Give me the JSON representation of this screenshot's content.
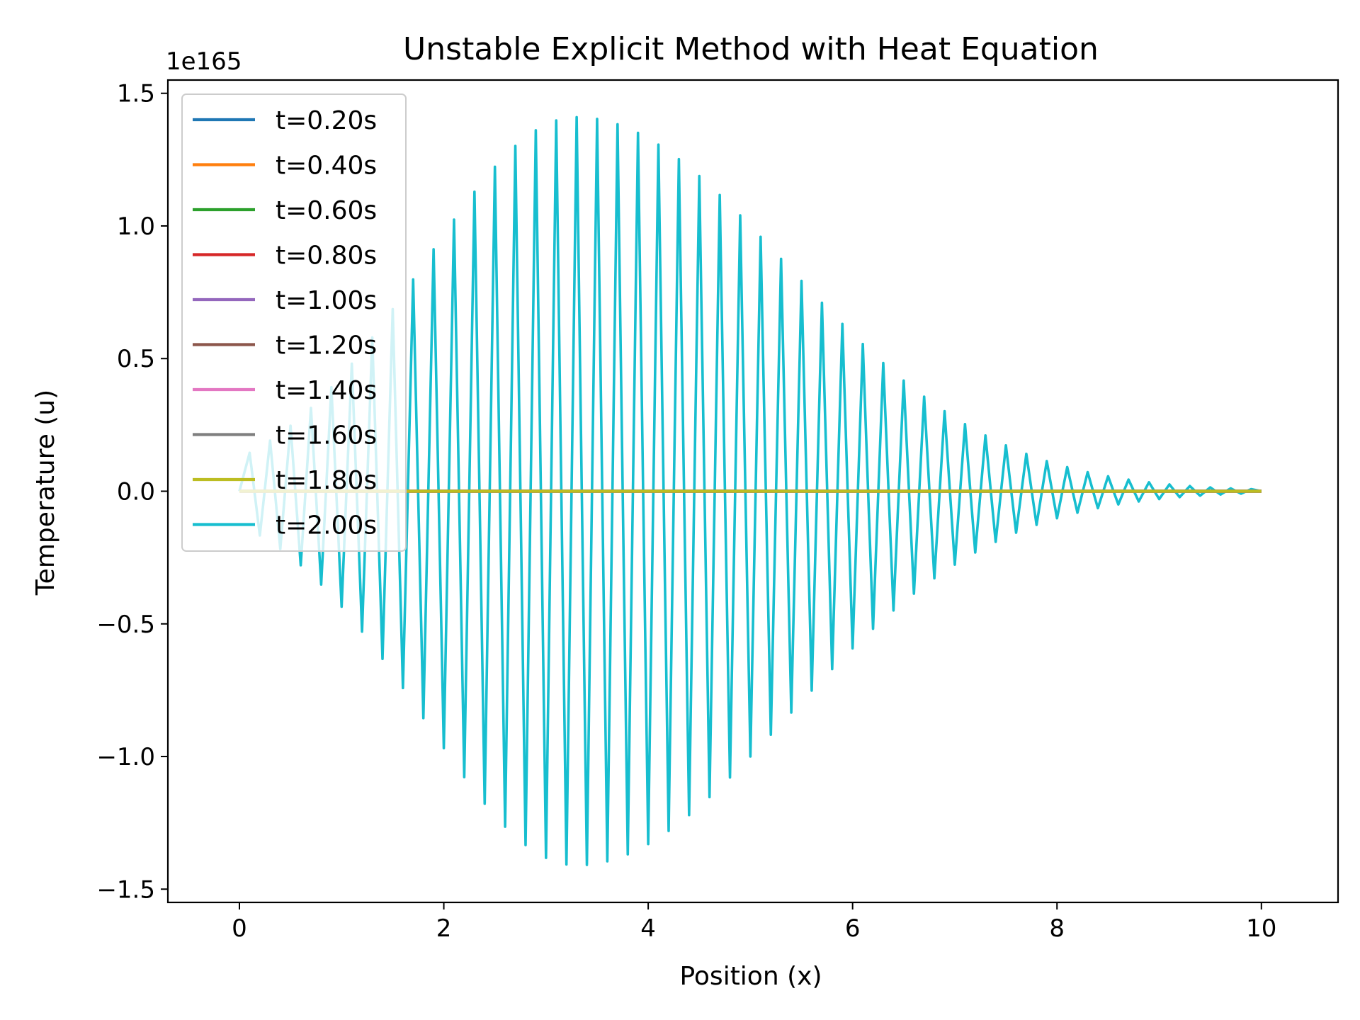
{
  "chart_data": {
    "type": "line",
    "title": "Unstable Explicit Method with Heat Equation",
    "xlabel": "Position (x)",
    "ylabel": "Temperature (u)",
    "y_offset_label": "1e165",
    "y_unit_scale": 1e+165,
    "xlim": [
      -0.7,
      10.75
    ],
    "ylim": [
      -1.55,
      1.55
    ],
    "xticks": [
      0,
      2,
      4,
      6,
      8,
      10
    ],
    "xtick_labels": [
      "0",
      "2",
      "4",
      "6",
      "8",
      "10"
    ],
    "yticks": [
      -1.5,
      -1.0,
      -0.5,
      0.0,
      0.5,
      1.0,
      1.5
    ],
    "ytick_labels": [
      "−1.5",
      "−1.0",
      "−0.5",
      "0.0",
      "0.5",
      "1.0",
      "1.5"
    ],
    "grid": false,
    "legend_position": "upper left",
    "x_range": [
      0,
      10
    ],
    "x_step": 0.1,
    "series": [
      {
        "name": "t=0.20s",
        "color": "#1f77b4",
        "values": "zero"
      },
      {
        "name": "t=0.40s",
        "color": "#ff7f0e",
        "values": "zero"
      },
      {
        "name": "t=0.60s",
        "color": "#2ca02c",
        "values": "zero"
      },
      {
        "name": "t=0.80s",
        "color": "#d62728",
        "values": "zero"
      },
      {
        "name": "t=1.00s",
        "color": "#9467bd",
        "values": "zero"
      },
      {
        "name": "t=1.20s",
        "color": "#8c564b",
        "values": "zero"
      },
      {
        "name": "t=1.40s",
        "color": "#e377c2",
        "values": "zero"
      },
      {
        "name": "t=1.60s",
        "color": "#7f7f7f",
        "values": "zero"
      },
      {
        "name": "t=1.80s",
        "color": "#bcbd22",
        "values": "zero"
      },
      {
        "name": "t=2.00s",
        "color": "#17becf",
        "envelope": {
          "peak": 1.41,
          "peak_x": 3.3,
          "sigma_left": 1.5,
          "sigma_right": 2.05
        },
        "oscillation": "alternating sign at each grid point",
        "values": "see envelope"
      }
    ]
  }
}
